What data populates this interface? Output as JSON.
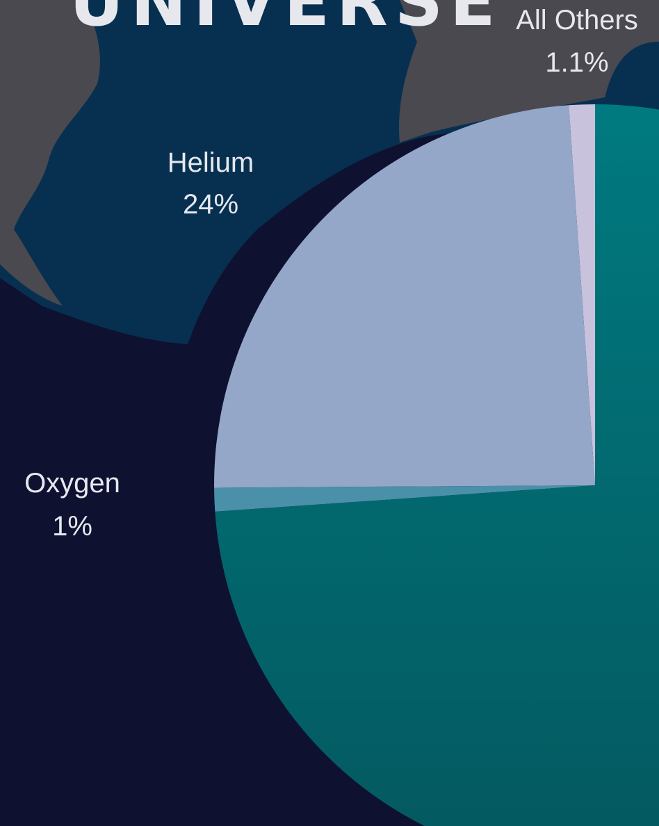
{
  "title": "UNIVERSE",
  "chart_data": {
    "type": "pie",
    "slices": [
      {
        "label": "All Others",
        "value_text": "1.1%",
        "value": 1.1,
        "color": "#c8c2dc"
      },
      {
        "label": "Helium",
        "value_text": "24%",
        "value": 24,
        "color": "#94a7c8"
      },
      {
        "label": "Oxygen",
        "value_text": "1%",
        "value": 1,
        "color": "#4a90a8"
      },
      {
        "label": "",
        "value_text": "",
        "value": 73.9,
        "color": "#007a80"
      }
    ],
    "start_angle_deg": 0,
    "direction": "counterclockwise"
  },
  "colors": {
    "background": "#0e1130",
    "map_ocean": "#073050",
    "land": "#4a4950",
    "text": "#e6e8ee"
  }
}
